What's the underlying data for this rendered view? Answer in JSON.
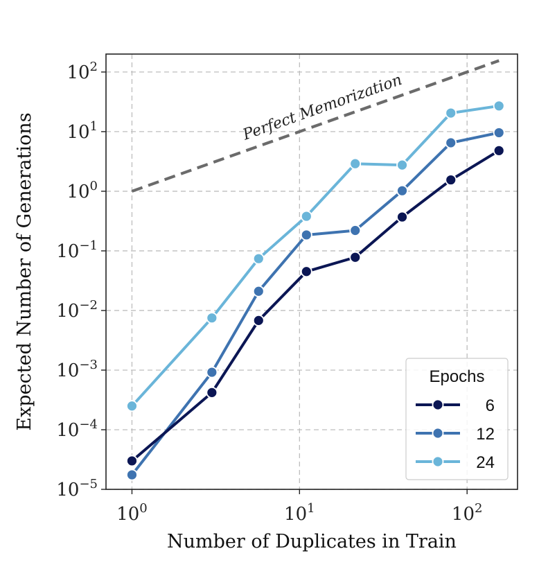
{
  "chart_data": {
    "type": "line",
    "xlabel": "Number of Duplicates in Train",
    "ylabel": "Expected Number of Generations",
    "x_scale": "log",
    "y_scale": "log",
    "xlim": [
      0.7,
      200
    ],
    "ylim": [
      1e-05,
      200
    ],
    "grid": true,
    "legend": {
      "title": "Epochs",
      "position": "bottom-right"
    },
    "x_ticks": [
      {
        "value": 1,
        "base": "10",
        "exp": "0"
      },
      {
        "value": 10,
        "base": "10",
        "exp": "1"
      },
      {
        "value": 100,
        "base": "10",
        "exp": "2"
      }
    ],
    "y_ticks": [
      {
        "value": 1e-05,
        "base": "10",
        "exp": "−5"
      },
      {
        "value": 0.0001,
        "base": "10",
        "exp": "−4"
      },
      {
        "value": 0.001,
        "base": "10",
        "exp": "−3"
      },
      {
        "value": 0.01,
        "base": "10",
        "exp": "−2"
      },
      {
        "value": 0.1,
        "base": "10",
        "exp": "−1"
      },
      {
        "value": 1,
        "base": "10",
        "exp": "0"
      },
      {
        "value": 10,
        "base": "10",
        "exp": "1"
      },
      {
        "value": 100,
        "base": "10",
        "exp": "2"
      }
    ],
    "x": [
      1,
      3,
      5.7,
      11,
      21.5,
      41,
      80,
      155
    ],
    "series": [
      {
        "name": "6",
        "color": "#0b1654",
        "values": [
          3e-05,
          0.00042,
          0.0068,
          0.045,
          0.078,
          0.37,
          1.55,
          4.8
        ]
      },
      {
        "name": "12",
        "color": "#3e73b0",
        "values": [
          1.75e-05,
          0.00092,
          0.021,
          0.185,
          0.22,
          1.02,
          6.5,
          9.6
        ]
      },
      {
        "name": "24",
        "color": "#6ab5d9",
        "values": [
          0.00025,
          0.0075,
          0.074,
          0.38,
          2.9,
          2.75,
          20.5,
          27
        ]
      }
    ],
    "reference_line": {
      "label": "Perfect Memorization",
      "color": "#6b6b6b",
      "x": [
        1,
        155
      ],
      "y": [
        1,
        155
      ]
    }
  }
}
